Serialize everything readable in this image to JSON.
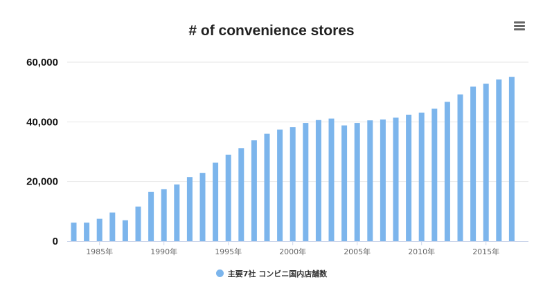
{
  "header": {
    "menu_icon": "hamburger-menu-icon"
  },
  "chart_data": {
    "type": "bar",
    "title": "# of convenience stores",
    "xlabel": "",
    "ylabel": "",
    "categories": [
      "1983年",
      "1984年",
      "1985年",
      "1986年",
      "1987年",
      "1988年",
      "1989年",
      "1990年",
      "1991年",
      "1992年",
      "1993年",
      "1994年",
      "1995年",
      "1996年",
      "1997年",
      "1998年",
      "1999年",
      "2000年",
      "2001年",
      "2002年",
      "2003年",
      "2004年",
      "2005年",
      "2006年",
      "2007年",
      "2008年",
      "2009年",
      "2010年",
      "2011年",
      "2012年",
      "2013年",
      "2014年",
      "2015年",
      "2016年",
      "2017年"
    ],
    "x_tick_labels": [
      "1985年",
      "1990年",
      "1995年",
      "2000年",
      "2005年",
      "2010年",
      "2015年"
    ],
    "y_tick_labels": [
      "0",
      "20,000",
      "40,000",
      "60,000"
    ],
    "ylim": [
      0,
      60000
    ],
    "grid": true,
    "legend_position": "bottom-center",
    "series": [
      {
        "name": "主要7社 コンビニ国内店舗数",
        "color": "#7cb5ec",
        "values": [
          6200,
          6200,
          7500,
          9600,
          7000,
          11600,
          16500,
          17400,
          19000,
          21500,
          22900,
          26300,
          29000,
          31200,
          33800,
          36000,
          37400,
          38200,
          39600,
          40600,
          41100,
          38800,
          39600,
          40500,
          40800,
          41400,
          42400,
          43100,
          44400,
          46700,
          49200,
          51800,
          52800,
          54200,
          55100
        ]
      }
    ]
  }
}
